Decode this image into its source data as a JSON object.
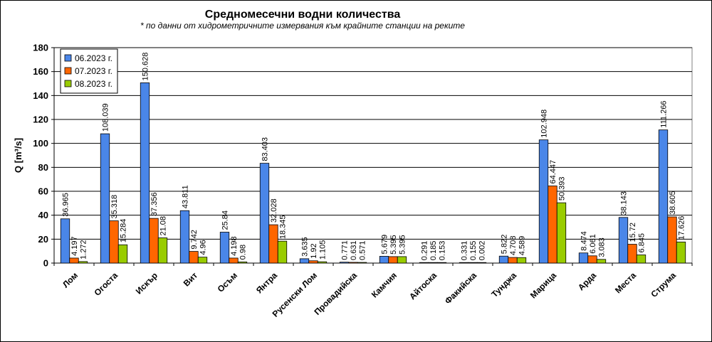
{
  "chart_data": {
    "type": "bar",
    "title": "Средномесечни водни количества",
    "subtitle": "* по данни от хидрометричните измервания към крайните станции на реките",
    "ylabel": "Q [m³/s]",
    "xlabel": "",
    "ylim": [
      0,
      180
    ],
    "yticks": [
      0,
      20,
      40,
      60,
      80,
      100,
      120,
      140,
      160,
      180
    ],
    "grid": true,
    "legend_position": "top-left",
    "categories": [
      "Лом",
      "Огоста",
      "Искър",
      "Вит",
      "Осъм",
      "Янтра",
      "Русенски Лом",
      "Провадийска",
      "Камчия",
      "Айтоска",
      "Факийска",
      "Тунджа",
      "Марица",
      "Арда",
      "Места",
      "Струма"
    ],
    "series": [
      {
        "name": "06.2023 г.",
        "color": "#4a86e8",
        "values": [
          36.965,
          108.039,
          150.628,
          43.811,
          25.84,
          83.403,
          3.635,
          0.771,
          5.679,
          0.291,
          0.331,
          5.822,
          102.948,
          8.474,
          38.143,
          111.266
        ],
        "labels": [
          "36.965",
          "108.039",
          "150.628",
          "43.811",
          "25.84",
          "83.403",
          "3.635",
          "0.771",
          "5.679",
          "0.291",
          "0.331",
          "5.822",
          "102.948",
          "8.474",
          "38.143",
          "111.266"
        ]
      },
      {
        "name": "07.2023 г.",
        "color": "#ff6600",
        "values": [
          4.197,
          35.318,
          37.356,
          9.742,
          4.198,
          32.028,
          1.92,
          0.631,
          5.395,
          0.185,
          0.155,
          4.708,
          64.447,
          6.061,
          15.72,
          38.605
        ],
        "labels": [
          "4.197",
          "35.318",
          "37.356",
          "9.742",
          "4.198",
          "32.028",
          "1.92",
          "0.631",
          "5.395",
          "0.185",
          "0.155",
          "4.708",
          "64.447",
          "6.061",
          "15.72",
          "38.605"
        ]
      },
      {
        "name": "08.2023 г.",
        "color": "#99cc00",
        "values": [
          1.272,
          15.284,
          21.08,
          4.96,
          0.98,
          18.345,
          1.105,
          0.571,
          5.395,
          0.153,
          0.002,
          4.589,
          50.393,
          3.083,
          6.845,
          17.626
        ],
        "labels": [
          "1.272",
          "15.284",
          "21.08",
          "4.96",
          "0.98",
          "18.345",
          "1.105",
          "0.571",
          "5.395",
          "0.153",
          "0.002",
          "4.589",
          "50.393",
          "3.083",
          "6.845",
          "17.626"
        ]
      }
    ]
  }
}
